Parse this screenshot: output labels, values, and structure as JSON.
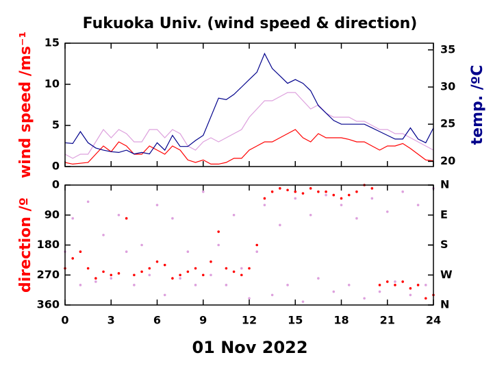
{
  "chart_data": [
    {
      "type": "line",
      "title": "Fukuoka Univ. (wind speed & direction)",
      "ylabel": "wind speed /ms⁻¹",
      "ylabel_color": "#ff0000",
      "y2label": "temp. /ºC",
      "y2label_color": "#00008b",
      "x": [
        0,
        0.5,
        1,
        1.5,
        2,
        2.5,
        3,
        3.5,
        4,
        4.5,
        5,
        5.5,
        6,
        6.5,
        7,
        7.5,
        8,
        8.5,
        9,
        9.5,
        10,
        10.5,
        11,
        11.5,
        12,
        12.5,
        13,
        13.5,
        14,
        14.5,
        15,
        15.5,
        16,
        16.5,
        17,
        17.5,
        18,
        18.5,
        19,
        19.5,
        20,
        20.5,
        21,
        21.5,
        22,
        22.5,
        23,
        23.5,
        24
      ],
      "xlim": [
        0,
        24
      ],
      "xticks": [
        0,
        3,
        6,
        9,
        12,
        15,
        18,
        21,
        24
      ],
      "ylim": [
        0,
        15
      ],
      "yticks": [
        0,
        5,
        10,
        15
      ],
      "y2lim": [
        19.3,
        35.9
      ],
      "y2ticks": [
        20,
        25,
        30,
        35
      ],
      "series": [
        {
          "color": "#dda0dd",
          "values": [
            1.5,
            1,
            1.5,
            1.5,
            3,
            4.5,
            3.5,
            4.5,
            4,
            3,
            3,
            4.5,
            4.5,
            3.5,
            4.5,
            4,
            2.5,
            2,
            3,
            3.5,
            3,
            3.5,
            4,
            4.5,
            6,
            7,
            8,
            8,
            8.5,
            9,
            9,
            8,
            7,
            7.5,
            6.5,
            6,
            6,
            6,
            5.5,
            5.5,
            5,
            4.5,
            4.5,
            4,
            4,
            3.5,
            3,
            2.5,
            2
          ]
        },
        {
          "color": "#ff0000",
          "values": [
            0.5,
            0.3,
            0.4,
            0.5,
            1.5,
            2.5,
            1.8,
            3,
            2.5,
            1.5,
            1.5,
            2.5,
            2,
            1.5,
            2.5,
            2,
            0.8,
            0.5,
            0.8,
            0.3,
            0.3,
            0.5,
            1,
            1,
            2,
            2.5,
            3,
            3,
            3.5,
            4,
            4.5,
            3.5,
            3,
            4,
            3.5,
            3.5,
            3.5,
            3.3,
            3,
            3,
            2.5,
            2,
            2.5,
            2.5,
            2.8,
            2.2,
            1.5,
            0.8,
            0.7
          ]
        },
        {
          "color": "#00008b",
          "axis": "y2",
          "values": [
            22.5,
            22.4,
            24,
            22.5,
            21.8,
            21.5,
            21.3,
            21.2,
            21.5,
            21,
            21.2,
            21,
            22.5,
            21.5,
            23.5,
            22,
            22,
            22.8,
            23.5,
            26,
            28.5,
            28.3,
            29,
            30,
            31,
            32,
            34.5,
            32.5,
            31.5,
            30.5,
            31,
            30.5,
            29.5,
            27.5,
            26.5,
            25.5,
            25,
            25,
            25,
            25,
            24.5,
            24,
            23.5,
            23,
            23,
            24.5,
            23,
            22.5,
            24.5
          ]
        }
      ]
    },
    {
      "type": "scatter",
      "ylabel": "direction /º",
      "ylabel_color": "#ff0000",
      "xlabel": "01 Nov 2022",
      "x": [
        0,
        0.5,
        1,
        1.5,
        2,
        2.5,
        3,
        3.5,
        4,
        4.5,
        5,
        5.5,
        6,
        6.5,
        7,
        7.5,
        8,
        8.5,
        9,
        9.5,
        10,
        10.5,
        11,
        11.5,
        12,
        12.5,
        13,
        13.5,
        14,
        14.5,
        15,
        15.5,
        16,
        16.5,
        17,
        17.5,
        18,
        18.5,
        19,
        19.5,
        20,
        20.5,
        21,
        21.5,
        22,
        22.5,
        23,
        23.5,
        24
      ],
      "xlim": [
        0,
        24
      ],
      "xticks": [
        0,
        3,
        6,
        9,
        12,
        15,
        18,
        21,
        24
      ],
      "ylim": [
        0,
        360
      ],
      "y_reversed": true,
      "yticks": [
        0,
        90,
        180,
        270,
        360
      ],
      "y2lim": [
        0,
        360
      ],
      "y2ticks": [
        {
          "value": 0,
          "label": "N"
        },
        {
          "value": 90,
          "label": "E"
        },
        {
          "value": 180,
          "label": "S"
        },
        {
          "value": 270,
          "label": "W"
        },
        {
          "value": 360,
          "label": "N"
        }
      ],
      "series": [
        {
          "color": "#dda0dd",
          "values": [
            200,
            100,
            300,
            50,
            290,
            150,
            280,
            90,
            200,
            300,
            180,
            270,
            60,
            330,
            100,
            280,
            200,
            300,
            20,
            270,
            180,
            300,
            90,
            250,
            340,
            200,
            60,
            330,
            120,
            300,
            40,
            350,
            90,
            280,
            30,
            320,
            60,
            300,
            100,
            340,
            40,
            320,
            80,
            290,
            20,
            330,
            60,
            300,
            10
          ]
        },
        {
          "color": "#ff0000",
          "values": [
            250,
            220,
            200,
            250,
            280,
            260,
            270,
            265,
            100,
            270,
            260,
            250,
            230,
            240,
            280,
            270,
            260,
            250,
            270,
            230,
            140,
            250,
            260,
            270,
            250,
            180,
            40,
            20,
            10,
            15,
            20,
            25,
            10,
            20,
            20,
            30,
            40,
            30,
            20,
            0,
            10,
            300,
            290,
            300,
            290,
            310,
            300,
            340,
            330
          ]
        }
      ]
    }
  ]
}
